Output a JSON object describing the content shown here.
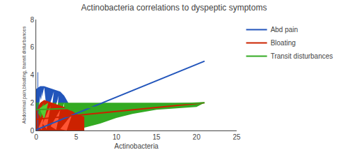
{
  "chart_data": {
    "type": "line",
    "title": "Actinobacteria correlations to dyspeptic symptoms",
    "xlabel": "Actinobacteria",
    "ylabel": "Abdominal pain,bloating, transit disturbances",
    "xlim": [
      0,
      25
    ],
    "ylim": [
      0,
      8
    ],
    "xticks": [
      0,
      5,
      10,
      15,
      20,
      25
    ],
    "yticks": [
      0,
      2,
      4,
      6,
      8
    ],
    "grid": false,
    "legend": "right",
    "series": [
      {
        "type": "area",
        "color": "#2255bb",
        "x": [
          0,
          0,
          0.5,
          1.0,
          1.5,
          2.0,
          2.5,
          3.0,
          3.5,
          4.0,
          4.5,
          5.0
        ],
        "upper": [
          0,
          3.0,
          3.2,
          3.2,
          3.1,
          3.0,
          2.9,
          2.8,
          2.5,
          2.0,
          1.2,
          0.0
        ],
        "lower": [
          0,
          0,
          0,
          0,
          0,
          0,
          0,
          0,
          0,
          0,
          0,
          0.0
        ]
      },
      {
        "type": "area",
        "color": "#33aa22",
        "x": [
          0,
          1,
          2,
          3,
          4,
          5,
          6,
          8,
          10,
          12,
          15,
          20,
          21
        ],
        "upper": [
          2.0,
          2.1,
          2.0,
          2.0,
          2.0,
          2.0,
          2.0,
          2.0,
          2.0,
          2.0,
          2.0,
          2.0,
          2.0
        ],
        "lower": [
          1.0,
          0.5,
          0.2,
          0.1,
          0.1,
          0.1,
          0.2,
          0.5,
          0.9,
          1.2,
          1.5,
          1.7,
          2.0
        ]
      },
      {
        "type": "polygon",
        "color": "white",
        "x": [
          0.05,
          0.5,
          0.8
        ],
        "values": [
          0.3,
          2.5,
          0.1
        ]
      },
      {
        "type": "polygon",
        "color": "white",
        "x": [
          0.5,
          1.0,
          1.3
        ],
        "values": [
          2.0,
          3.1,
          1.5
        ]
      },
      {
        "type": "polygon",
        "color": "white",
        "x": [
          1.0,
          1.5,
          2.0
        ],
        "values": [
          0.2,
          1.8,
          0.5
        ]
      },
      {
        "type": "polygon",
        "color": "white",
        "x": [
          0.2,
          0.7,
          0.4
        ],
        "values": [
          0.8,
          2.8,
          0.3
        ]
      },
      {
        "type": "polygon",
        "color": "white",
        "x": [
          1.5,
          2.2,
          1.8
        ],
        "values": [
          1.5,
          2.8,
          0.8
        ]
      },
      {
        "type": "polygon",
        "color": "white",
        "x": [
          2.0,
          2.8,
          2.4
        ],
        "values": [
          0.8,
          2.5,
          0.3
        ]
      },
      {
        "type": "polygon",
        "color": "white",
        "x": [
          2.8,
          3.5,
          3.2
        ],
        "values": [
          0.5,
          2.0,
          0.1
        ]
      },
      {
        "type": "polygon",
        "color": "white",
        "x": [
          0.05,
          0.3,
          0.15
        ],
        "values": [
          0.0,
          1.2,
          0.5
        ]
      },
      {
        "type": "polygon",
        "color": "white",
        "x": [
          3.5,
          4.2,
          3.8
        ],
        "values": [
          0.2,
          1.5,
          0.0
        ]
      },
      {
        "type": "area",
        "color": "#cc2200",
        "x": [
          0,
          0.5,
          1.0,
          1.5,
          2.0,
          2.5,
          3.0,
          3.5,
          4.0,
          4.5,
          5.0,
          5.5,
          6.0
        ],
        "upper": [
          1.5,
          2.0,
          2.2,
          2.1,
          2.0,
          1.9,
          1.8,
          1.7,
          1.5,
          1.4,
          1.2,
          1.1,
          1.0
        ],
        "lower": [
          0.0,
          0.0,
          0.0,
          0.0,
          0.0,
          0.0,
          0.0,
          0.0,
          0.0,
          0.0,
          0.0,
          0.0,
          0.0
        ]
      },
      {
        "type": "polygon",
        "color": "#ff5533",
        "x": [
          0.3,
          1.0,
          0.7
        ],
        "values": [
          0.2,
          1.2,
          0.05
        ]
      },
      {
        "type": "polygon",
        "color": "#ff5533",
        "x": [
          0.8,
          1.8,
          1.3
        ],
        "values": [
          0.5,
          1.8,
          0.1
        ]
      },
      {
        "type": "polygon",
        "color": "#ff5533",
        "x": [
          1.8,
          3.0,
          2.5
        ],
        "values": [
          0.3,
          1.5,
          0.05
        ]
      },
      {
        "type": "polygon",
        "color": "#ff5533",
        "x": [
          3.0,
          4.5,
          3.8
        ],
        "values": [
          0.1,
          1.2,
          0.0
        ]
      },
      {
        "type": "polygon",
        "color": "#33aa22",
        "x": [
          0.2,
          1.0,
          0.6
        ],
        "values": [
          1.3,
          2.0,
          0.9
        ]
      },
      {
        "type": "polygon",
        "color": "#55cc33",
        "x": [
          0.4,
          1.5,
          1.0
        ],
        "values": [
          1.6,
          2.0,
          0.8
        ]
      },
      {
        "type": "line",
        "color": "#2255bb",
        "x": [
          0.2,
          0.2
        ],
        "values": [
          0.0,
          4.2
        ]
      },
      {
        "type": "line",
        "name": "Abd pain",
        "color": "#2255bb",
        "x": [
          0,
          21
        ],
        "values": [
          0.05,
          5.0
        ]
      },
      {
        "type": "line",
        "name": "Bloating",
        "color": "#cc2200",
        "x": [
          0,
          21
        ],
        "values": [
          0.8,
          2.0
        ]
      },
      {
        "type": "line",
        "name": "Transit disturbances",
        "color": "#33aa22",
        "x": [
          0,
          21
        ],
        "values": [
          1.5,
          2.0
        ]
      }
    ]
  }
}
